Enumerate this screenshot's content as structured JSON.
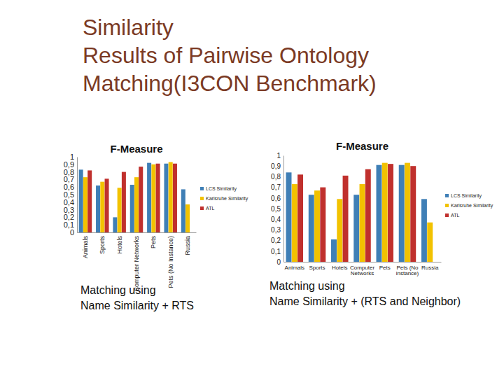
{
  "slide": {
    "title": [
      "Similarity",
      "Results of Pairwise Ontology",
      "Matching(I3CON Benchmark)"
    ]
  },
  "chart_data": [
    {
      "type": "bar",
      "title": "F-Measure",
      "categories": [
        "Animals",
        "Sports",
        "Hotels",
        "Computer Networks",
        "Pets",
        "Pets (No Instance)",
        "Russia"
      ],
      "series": [
        {
          "name": "LCS Similarity",
          "color": "#3f7fb6",
          "values": [
            0.83,
            0.62,
            0.2,
            0.63,
            0.92,
            0.91,
            0.57
          ]
        },
        {
          "name": "Karlsruhe Similarity",
          "color": "#f2c200",
          "values": [
            0.73,
            0.67,
            0.59,
            0.73,
            0.9,
            0.93,
            0.37
          ]
        },
        {
          "name": "ATL",
          "color": "#c0302d",
          "values": [
            0.82,
            0.71,
            0.8,
            0.87,
            0.91,
            0.91,
            null
          ]
        }
      ],
      "ylim": [
        0,
        1
      ],
      "yticks": [
        0,
        {
          "value": 0.1,
          "label": "0,1"
        },
        {
          "value": 0.2,
          "label": "0,2"
        },
        {
          "value": 0.3,
          "label": "0,3"
        },
        {
          "value": 0.4,
          "label": "0,4"
        },
        {
          "value": 0.5,
          "label": "0,5"
        },
        {
          "value": 0.6,
          "label": "0,6"
        },
        {
          "value": 0.7,
          "label": "0,7"
        },
        {
          "value": 0.8,
          "label": "0,8"
        },
        {
          "value": 0.9,
          "label": "0,9"
        },
        1
      ],
      "legend": "right",
      "annotations": [
        "Matching using",
        "Name Similarity + RTS"
      ]
    },
    {
      "type": "bar",
      "title": "F-Measure",
      "categories": [
        "Animals",
        "Sports",
        "Hotels",
        "Computer Networks",
        "Pets",
        "Pets (No instance)",
        "Russia"
      ],
      "series": [
        {
          "name": "LCS Similarity",
          "color": "#3f7fb6",
          "values": [
            0.84,
            0.63,
            0.21,
            0.63,
            0.91,
            0.91,
            0.59
          ]
        },
        {
          "name": "Karlsruhe Similarity",
          "color": "#f2c200",
          "values": [
            0.73,
            0.67,
            0.59,
            0.73,
            0.93,
            0.93,
            0.37
          ]
        },
        {
          "name": "ATL",
          "color": "#c0302d",
          "values": [
            0.82,
            0.7,
            0.81,
            0.87,
            0.92,
            0.9,
            null
          ]
        }
      ],
      "ylim": [
        0,
        1
      ],
      "yticks": [
        0,
        {
          "value": 0.1,
          "label": "0,1"
        },
        {
          "value": 0.2,
          "label": "0,2"
        },
        {
          "value": 0.3,
          "label": "0,3"
        },
        {
          "value": 0.4,
          "label": "0,4"
        },
        {
          "value": 0.5,
          "label": "0,5"
        },
        {
          "value": 0.6,
          "label": "0,6"
        },
        {
          "value": 0.7,
          "label": "0,7"
        },
        {
          "value": 0.8,
          "label": "0,8"
        },
        {
          "value": 0.9,
          "label": "0,9"
        },
        1
      ],
      "legend": "right",
      "annotations": [
        "Matching using",
        "Name Similarity + (RTS and Neighbor)"
      ]
    }
  ]
}
